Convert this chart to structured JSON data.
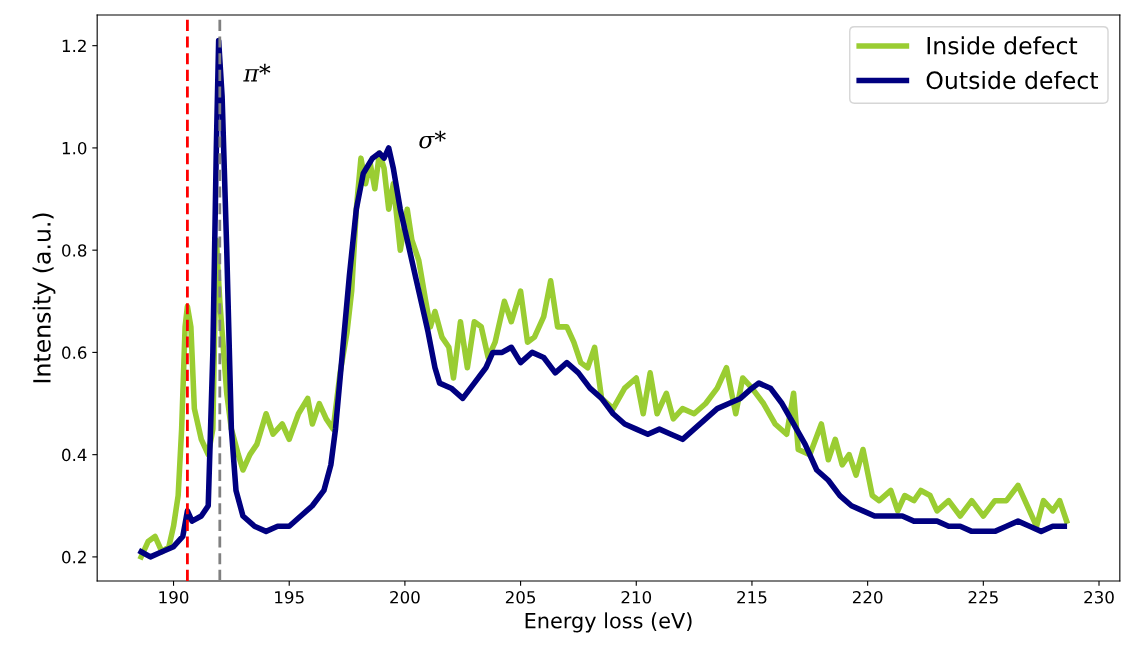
{
  "chart_data": {
    "type": "line",
    "xlabel": "Energy loss (eV)",
    "ylabel": "Intensity (a.u.)",
    "xlim": [
      186.7,
      230.9
    ],
    "ylim": [
      0.153,
      1.26
    ],
    "xticks": [
      190,
      195,
      200,
      205,
      210,
      215,
      220,
      225,
      230
    ],
    "yticks": [
      {
        "value": 0.2,
        "label": "0.2"
      },
      {
        "value": 0.4,
        "label": "0.4"
      },
      {
        "value": 0.6,
        "label": "0.6"
      },
      {
        "value": 0.8,
        "label": "0.8"
      },
      {
        "value": 1.0,
        "label": "1.0"
      },
      {
        "value": 1.2,
        "label": "1.2"
      }
    ],
    "grid": false,
    "legend": "top right",
    "marker": "none",
    "line_style": "solid",
    "ref_lines": [
      {
        "axis": "x",
        "value": 190.6,
        "label": null,
        "color": "#ff0000",
        "line_style": "dashed"
      },
      {
        "axis": "x",
        "value": 192.0,
        "label": null,
        "color": "#808080",
        "line_style": "dashed"
      }
    ],
    "annotations": [
      "π*",
      "σ*"
    ],
    "series": [
      {
        "name": "Inside defect",
        "color": "#9acd32",
        "x": [
          188.6,
          188.9,
          189.2,
          189.5,
          189.8,
          190.0,
          190.2,
          190.35,
          190.5,
          190.6,
          190.75,
          190.9,
          191.2,
          191.5,
          191.7,
          191.85,
          192.0,
          192.3,
          192.5,
          192.8,
          193.0,
          193.3,
          193.6,
          194.0,
          194.3,
          194.7,
          195.0,
          195.4,
          195.8,
          196.0,
          196.3,
          196.6,
          196.9,
          197.2,
          197.5,
          197.7,
          197.9,
          198.1,
          198.3,
          198.5,
          198.7,
          198.9,
          199.1,
          199.3,
          199.5,
          199.8,
          200.1,
          200.3,
          200.6,
          200.9,
          201.1,
          201.3,
          201.6,
          201.9,
          202.1,
          202.4,
          202.7,
          203.0,
          203.3,
          203.6,
          203.9,
          204.3,
          204.6,
          205.0,
          205.3,
          205.6,
          206.0,
          206.3,
          206.6,
          207.0,
          207.3,
          207.6,
          207.9,
          208.2,
          208.5,
          209.0,
          209.5,
          210.0,
          210.3,
          210.6,
          210.9,
          211.3,
          211.6,
          212.0,
          212.5,
          213.0,
          213.5,
          213.9,
          214.3,
          214.6,
          215.0,
          215.5,
          216.0,
          216.5,
          216.8,
          217.0,
          217.5,
          218.0,
          218.3,
          218.6,
          218.9,
          219.2,
          219.5,
          219.8,
          220.2,
          220.5,
          221.0,
          221.3,
          221.6,
          222.0,
          222.3,
          222.7,
          223.0,
          223.5,
          224.0,
          224.5,
          225.0,
          225.5,
          226.0,
          226.5,
          227.0,
          227.3,
          227.6,
          228.0,
          228.3,
          228.6
        ],
        "values": [
          0.2,
          0.23,
          0.24,
          0.21,
          0.22,
          0.26,
          0.32,
          0.45,
          0.65,
          0.69,
          0.65,
          0.49,
          0.43,
          0.4,
          0.45,
          0.82,
          0.7,
          0.52,
          0.45,
          0.4,
          0.37,
          0.4,
          0.42,
          0.48,
          0.44,
          0.46,
          0.43,
          0.48,
          0.51,
          0.46,
          0.5,
          0.47,
          0.45,
          0.56,
          0.64,
          0.72,
          0.88,
          0.98,
          0.93,
          0.97,
          0.92,
          0.99,
          0.96,
          0.88,
          0.93,
          0.8,
          0.88,
          0.82,
          0.78,
          0.7,
          0.65,
          0.68,
          0.63,
          0.61,
          0.55,
          0.66,
          0.57,
          0.66,
          0.65,
          0.59,
          0.62,
          0.7,
          0.66,
          0.72,
          0.62,
          0.63,
          0.67,
          0.74,
          0.65,
          0.65,
          0.62,
          0.58,
          0.57,
          0.61,
          0.51,
          0.49,
          0.53,
          0.55,
          0.48,
          0.56,
          0.48,
          0.52,
          0.47,
          0.49,
          0.48,
          0.5,
          0.53,
          0.57,
          0.48,
          0.55,
          0.53,
          0.5,
          0.46,
          0.44,
          0.52,
          0.41,
          0.4,
          0.46,
          0.39,
          0.43,
          0.38,
          0.4,
          0.36,
          0.41,
          0.32,
          0.31,
          0.33,
          0.29,
          0.32,
          0.31,
          0.33,
          0.32,
          0.29,
          0.31,
          0.28,
          0.31,
          0.28,
          0.31,
          0.31,
          0.34,
          0.29,
          0.26,
          0.31,
          0.29,
          0.31,
          0.27
        ]
      },
      {
        "name": "Outside defect",
        "color": "#000080",
        "x": [
          188.6,
          189.0,
          189.5,
          190.0,
          190.4,
          190.6,
          190.8,
          191.2,
          191.5,
          191.7,
          191.85,
          191.95,
          192.1,
          192.3,
          192.5,
          192.7,
          193.0,
          193.5,
          194.0,
          194.5,
          195.0,
          195.5,
          196.0,
          196.5,
          196.8,
          197.0,
          197.3,
          197.6,
          197.9,
          198.2,
          198.6,
          198.9,
          199.1,
          199.3,
          199.5,
          199.8,
          200.2,
          200.5,
          200.8,
          201.0,
          201.3,
          201.5,
          202.0,
          202.5,
          203.0,
          203.5,
          203.8,
          204.2,
          204.6,
          205.0,
          205.5,
          206.0,
          206.5,
          207.0,
          207.5,
          208.0,
          208.5,
          209.0,
          209.5,
          210.0,
          210.5,
          211.0,
          211.5,
          212.0,
          212.5,
          213.0,
          213.5,
          214.0,
          214.5,
          215.0,
          215.3,
          215.8,
          216.3,
          216.8,
          217.3,
          217.8,
          218.3,
          218.8,
          219.3,
          219.8,
          220.3,
          221.0,
          221.5,
          222.0,
          222.5,
          223.0,
          223.5,
          224.0,
          224.5,
          225.0,
          225.5,
          226.0,
          226.5,
          227.0,
          227.5,
          228.0,
          228.5
        ],
        "values": [
          0.21,
          0.2,
          0.21,
          0.22,
          0.24,
          0.29,
          0.27,
          0.28,
          0.3,
          0.6,
          1.0,
          1.21,
          1.1,
          0.8,
          0.45,
          0.33,
          0.28,
          0.26,
          0.25,
          0.26,
          0.26,
          0.28,
          0.3,
          0.33,
          0.38,
          0.45,
          0.6,
          0.75,
          0.88,
          0.95,
          0.98,
          0.99,
          0.98,
          1.0,
          0.96,
          0.88,
          0.8,
          0.74,
          0.68,
          0.64,
          0.57,
          0.54,
          0.53,
          0.51,
          0.54,
          0.57,
          0.6,
          0.6,
          0.61,
          0.58,
          0.6,
          0.59,
          0.56,
          0.58,
          0.56,
          0.53,
          0.51,
          0.48,
          0.46,
          0.45,
          0.44,
          0.45,
          0.44,
          0.43,
          0.45,
          0.47,
          0.49,
          0.5,
          0.51,
          0.53,
          0.54,
          0.53,
          0.5,
          0.46,
          0.42,
          0.37,
          0.35,
          0.32,
          0.3,
          0.29,
          0.28,
          0.28,
          0.28,
          0.27,
          0.27,
          0.27,
          0.26,
          0.26,
          0.25,
          0.25,
          0.25,
          0.26,
          0.27,
          0.26,
          0.25,
          0.26,
          0.26
        ]
      }
    ]
  }
}
